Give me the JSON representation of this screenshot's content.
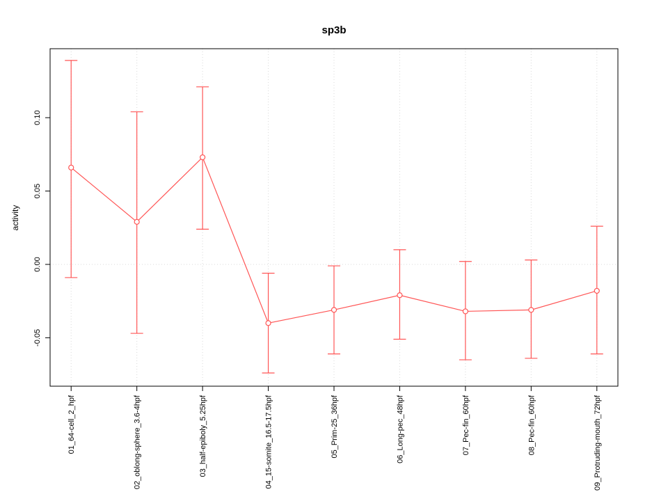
{
  "chart_data": {
    "type": "line",
    "title": "sp3b",
    "xlabel": "",
    "ylabel": "activity",
    "categories": [
      "01_64-cell_2_hpf",
      "02_oblong-sphere_3.6-4hpf",
      "03_half-epiboly_5.25hpf",
      "04_15-somite_16.5-17.5hpf",
      "05_Prim-25_36hpf",
      "06_Long-pec_48hpf",
      "07_Pec-fin_60hpf",
      "08_Pec-fin_60hpf",
      "09_Protruding-mouth_72hpf"
    ],
    "values": [
      0.066,
      0.029,
      0.073,
      -0.04,
      -0.031,
      -0.021,
      -0.032,
      -0.031,
      -0.018
    ],
    "error_low": [
      -0.009,
      -0.047,
      0.024,
      -0.074,
      -0.061,
      -0.051,
      -0.065,
      -0.064,
      -0.061
    ],
    "error_high": [
      0.139,
      0.104,
      0.121,
      -0.006,
      -0.001,
      0.01,
      0.002,
      0.003,
      0.026
    ],
    "yticks": [
      -0.05,
      0.0,
      0.05,
      0.1
    ],
    "ytick_labels": [
      "-0.05",
      "0.00",
      "0.05",
      "0.10"
    ],
    "ylim": [
      -0.083,
      0.147
    ],
    "grid": true,
    "zero_line_style": "dotted",
    "legend": "none",
    "colors": {
      "series": "#ff5555",
      "grid": "#d8d8d8",
      "axis": "#000000",
      "background": "#ffffff",
      "point_fill": "#ffffff"
    }
  }
}
